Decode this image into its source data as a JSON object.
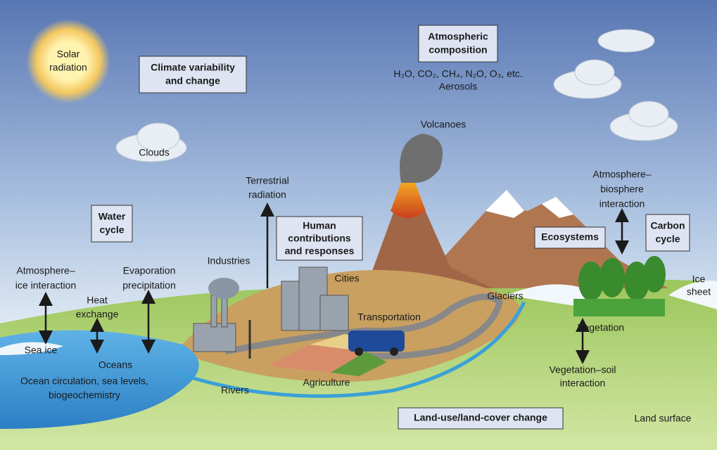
{
  "boxes": [
    {
      "lines": [
        "Climate variability",
        "and change"
      ]
    },
    {
      "lines": [
        "Atmospheric",
        "composition"
      ]
    },
    {
      "lines": [
        "Water",
        "cycle"
      ]
    },
    {
      "lines": [
        "Human",
        "contributions",
        "and responses"
      ]
    },
    {
      "lines": [
        "Ecosystems"
      ]
    },
    {
      "lines": [
        "Carbon",
        "cycle"
      ]
    },
    {
      "lines": [
        "Land-use/land-cover change"
      ]
    }
  ],
  "labels": [
    {
      "lines": [
        "Solar",
        "radiation"
      ]
    },
    {
      "lines": [
        "H₂O, CO₂, CH₄, N₂O, O₃, etc.",
        "Aerosols"
      ]
    },
    {
      "lines": [
        "Volcanoes"
      ]
    },
    {
      "lines": [
        "Clouds"
      ]
    },
    {
      "lines": [
        "Terrestrial",
        "radiation"
      ]
    },
    {
      "lines": [
        "Atmosphere–",
        "biosphere",
        "interaction"
      ]
    },
    {
      "lines": [
        "Atmosphere–",
        "ice interaction"
      ]
    },
    {
      "lines": [
        "Heat",
        "exchange"
      ]
    },
    {
      "lines": [
        "Evaporation",
        "precipitation"
      ]
    },
    {
      "lines": [
        "Industries"
      ]
    },
    {
      "lines": [
        "Cities"
      ]
    },
    {
      "lines": [
        "Transportation"
      ]
    },
    {
      "lines": [
        "Glaciers"
      ]
    },
    {
      "lines": [
        "Ice",
        "sheet"
      ]
    },
    {
      "lines": [
        "Vegetation"
      ]
    },
    {
      "lines": [
        "Vegetation–soil",
        "interaction"
      ]
    },
    {
      "lines": [
        "Sea ice"
      ]
    },
    {
      "lines": [
        "Oceans"
      ]
    },
    {
      "lines": [
        "Ocean circulation, sea levels,",
        "biogeochemistry"
      ]
    },
    {
      "lines": [
        "Rivers"
      ]
    },
    {
      "lines": [
        "Agriculture"
      ]
    },
    {
      "lines": [
        "Land surface"
      ]
    }
  ]
}
